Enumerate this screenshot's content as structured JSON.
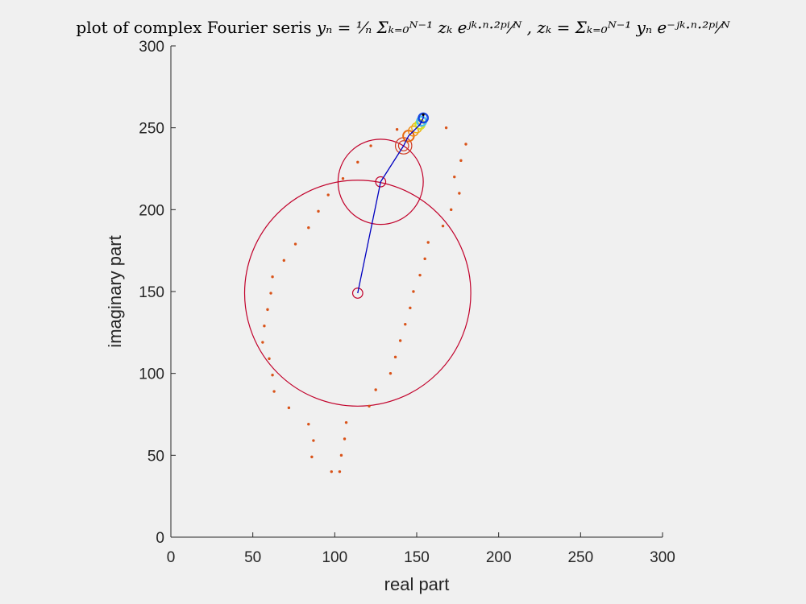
{
  "title_text": "plot of complex Fourier seris y_n = 1/N Σ_{k=0}^{N−1} z_k e^{jk·n·2π/N}, z_k = Σ_{k=0}^{N−1} y_n e^{−jk·n·2π/N}",
  "title": {
    "prefix": "plot of complex Fourier seris",
    "eq1": "yₙ = ¹⁄ₙ Σₖ₌₀ᴺ⁻¹ zₖ eʲᵏ·ⁿ·²ᵖⁱ⁄ᴺ ,",
    "eq2": "zₖ = Σₖ₌₀ᴺ⁻¹ yₙ e⁻ʲᵏ·ⁿ·²ᵖⁱ⁄ᴺ"
  },
  "chart_data": {
    "type": "scatter",
    "xlabel": "real part",
    "ylabel": "imaginary part",
    "xlim": [
      0,
      300
    ],
    "ylim": [
      0,
      300
    ],
    "xticks": [
      0,
      50,
      100,
      150,
      200,
      250,
      300
    ],
    "yticks": [
      0,
      50,
      100,
      150,
      200,
      250,
      300
    ],
    "grid": false,
    "point_color": "#d95319",
    "points": [
      [
        98,
        40
      ],
      [
        86,
        49
      ],
      [
        87,
        59
      ],
      [
        84,
        69
      ],
      [
        72,
        79
      ],
      [
        63,
        89
      ],
      [
        62,
        99
      ],
      [
        60,
        109
      ],
      [
        56,
        119
      ],
      [
        57,
        129
      ],
      [
        59,
        139
      ],
      [
        61,
        149
      ],
      [
        62,
        159
      ],
      [
        69,
        169
      ],
      [
        76,
        179
      ],
      [
        84,
        189
      ],
      [
        90,
        199
      ],
      [
        96,
        209
      ],
      [
        105,
        219
      ],
      [
        114,
        229
      ],
      [
        122,
        239
      ],
      [
        138,
        249
      ],
      [
        168,
        250
      ],
      [
        180,
        240
      ],
      [
        177,
        230
      ],
      [
        173,
        220
      ],
      [
        176,
        210
      ],
      [
        171,
        200
      ],
      [
        166,
        190
      ],
      [
        157,
        180
      ],
      [
        155,
        170
      ],
      [
        152,
        160
      ],
      [
        148,
        150
      ],
      [
        146,
        140
      ],
      [
        143,
        130
      ],
      [
        140,
        120
      ],
      [
        137,
        110
      ],
      [
        134,
        100
      ],
      [
        125,
        90
      ],
      [
        121,
        80
      ],
      [
        107,
        70
      ],
      [
        106,
        60
      ],
      [
        104,
        50
      ],
      [
        103,
        40
      ]
    ],
    "epicycle_color": "#c1002a",
    "arm_color": "#0000c0",
    "epicycle_centers": [
      [
        114,
        149
      ],
      [
        128,
        217
      ],
      [
        142,
        239
      ],
      [
        145,
        245
      ],
      [
        148,
        248
      ],
      [
        150,
        250
      ],
      [
        152,
        252
      ],
      [
        153,
        254
      ],
      [
        154,
        256
      ]
    ],
    "epicycle_radii": [
      69,
      26,
      5,
      3.5,
      3,
      3,
      2.5,
      2.5,
      2.5
    ],
    "epicycle_colors": [
      "#c1002a",
      "#c1002a",
      "#d03a20",
      "#e86a10",
      "#f08a10",
      "#f0b010",
      "#d0e020",
      "#40c0f0",
      "#1040e0"
    ],
    "inner_marker_radius": 3.5,
    "tip": [
      154,
      258
    ]
  }
}
